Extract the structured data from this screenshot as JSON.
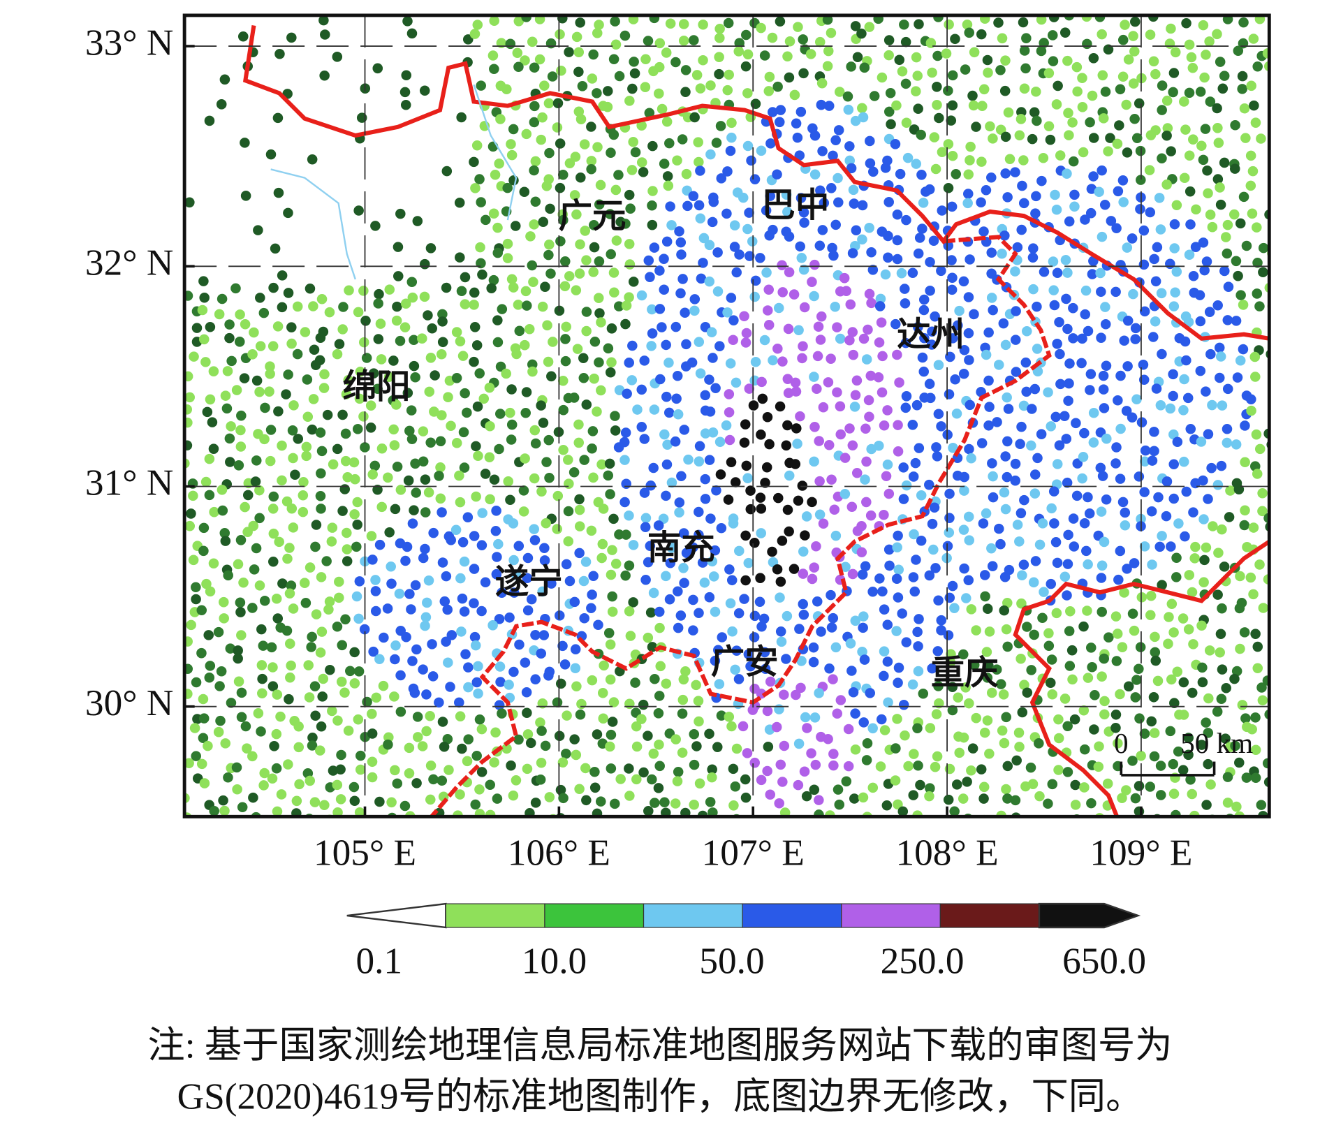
{
  "map": {
    "xlim": [
      104.07,
      109.66
    ],
    "ylim": [
      29.5,
      33.14
    ],
    "xticks": [
      {
        "value": 105,
        "label": "105° E"
      },
      {
        "value": 106,
        "label": "106° E"
      },
      {
        "value": 107,
        "label": "107° E"
      },
      {
        "value": 108,
        "label": "108° E"
      },
      {
        "value": 109,
        "label": "109° E"
      }
    ],
    "yticks": [
      {
        "value": 33,
        "label": "33° N"
      },
      {
        "value": 32,
        "label": "32° N"
      },
      {
        "value": 31,
        "label": "31° N"
      },
      {
        "value": 30,
        "label": "30° N"
      }
    ],
    "cities": [
      "广元",
      "巴中",
      "达州",
      "绵阳",
      "南充",
      "遂宁",
      "广安",
      "重庆"
    ],
    "scale_bar": [
      "0",
      "50 km"
    ]
  },
  "colorbar": {
    "colors": [
      "#ffffff",
      "#8fe05a",
      "#3cc43c",
      "#6ec8f0",
      "#2a5ae8",
      "#b060e8",
      "#6a1a1a",
      "#111111"
    ],
    "labels": [
      "0.1",
      "10.0",
      "50.0",
      "250.0",
      "650.0"
    ]
  },
  "caption": [
    "注: 基于国家测绘地理信息局标准地图服务网站下载的审图号为",
    "GS(2020)4619号的标准地图制作，底图边界无修改，下同。"
  ]
}
